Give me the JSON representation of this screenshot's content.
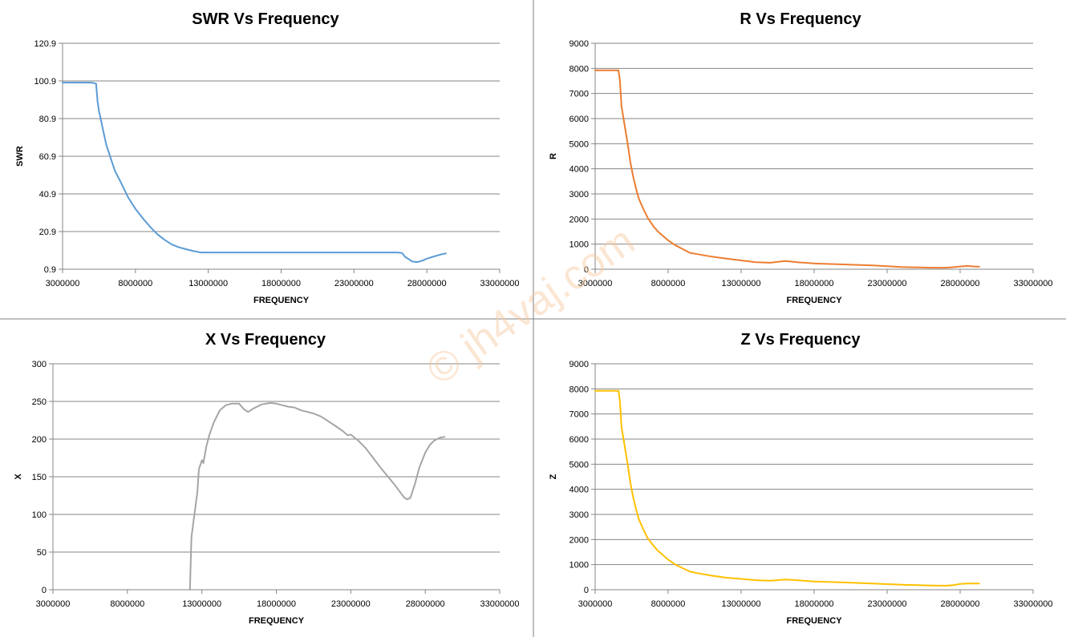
{
  "watermark": "© jh4vaj.com",
  "chart_data": [
    {
      "type": "line",
      "title": "SWR Vs Frequency",
      "xlabel": "FREQUENCY",
      "ylabel": "SWR",
      "xlim": [
        3000000,
        33000000
      ],
      "ylim": [
        0.9,
        120.9
      ],
      "x_ticks": [
        3000000,
        8000000,
        13000000,
        18000000,
        23000000,
        28000000,
        33000000
      ],
      "x_tick_labels": [
        "3000000",
        "8000000",
        "13000000",
        "18000000",
        "23000000",
        "28000000",
        "33000000"
      ],
      "y_ticks": [
        0.9,
        20.9,
        40.9,
        60.9,
        80.9,
        100.9,
        120.9
      ],
      "y_tick_labels": [
        "0.9",
        "20.9",
        "40.9",
        "60.9",
        "80.9",
        "100.9",
        "120.9"
      ],
      "grid": true,
      "color": "#5b9bd5",
      "series": [
        {
          "x": [
            3000000,
            4000000,
            5000000,
            5300000,
            5400000,
            5500000,
            5800000,
            6000000,
            6300000,
            6600000,
            7000000,
            7500000,
            8000000,
            8500000,
            9000000,
            9500000,
            10000000,
            10500000,
            11000000,
            11500000,
            12000000,
            12500000,
            13000000,
            15000000,
            18000000,
            21000000,
            24000000,
            26000000,
            26300000,
            26500000,
            26800000,
            27000000,
            27300000,
            27500000,
            27800000,
            28000000,
            28500000,
            29000000,
            29300000
          ],
          "y": [
            100,
            100,
            100,
            99.5,
            90,
            85,
            74,
            67,
            60,
            53,
            47,
            39,
            33,
            28,
            23.5,
            19.5,
            16.5,
            14,
            12.5,
            11.5,
            10.5,
            9.8,
            9.8,
            9.8,
            9.8,
            9.8,
            9.8,
            9.8,
            9.5,
            7.5,
            6,
            5,
            4.7,
            5,
            5.8,
            6.5,
            7.7,
            8.8,
            9.3
          ]
        }
      ]
    },
    {
      "type": "line",
      "title": "R Vs Frequency",
      "xlabel": "FREQUENCY",
      "ylabel": "R",
      "xlim": [
        3000000,
        33000000
      ],
      "ylim": [
        0,
        9000
      ],
      "x_ticks": [
        3000000,
        8000000,
        13000000,
        18000000,
        23000000,
        28000000,
        33000000
      ],
      "x_tick_labels": [
        "3000000",
        "8000000",
        "13000000",
        "18000000",
        "23000000",
        "28000000",
        "33000000"
      ],
      "y_ticks": [
        0,
        1000,
        2000,
        3000,
        4000,
        5000,
        6000,
        7000,
        8000,
        9000
      ],
      "y_tick_labels": [
        "0",
        "1000",
        "2000",
        "3000",
        "4000",
        "5000",
        "6000",
        "7000",
        "8000",
        "9000"
      ],
      "grid": true,
      "color": "#ed7d31",
      "series": [
        {
          "x": [
            3000000,
            4000000,
            4600000,
            4700000,
            4800000,
            5000000,
            5200000,
            5300000,
            5400000,
            5600000,
            5800000,
            6000000,
            6300000,
            6600000,
            7000000,
            7300000,
            7600000,
            8000000,
            8500000,
            9000000,
            9500000,
            10000000,
            10500000,
            11000000,
            12000000,
            13000000,
            14000000,
            15000000,
            16000000,
            16500000,
            17000000,
            18000000,
            20000000,
            22000000,
            24000000,
            26000000,
            27000000,
            27500000,
            28000000,
            28500000,
            29000000,
            29300000
          ],
          "y": [
            7920,
            7920,
            7920,
            7500,
            6500,
            5800,
            5100,
            4700,
            4300,
            3700,
            3200,
            2800,
            2400,
            2050,
            1700,
            1500,
            1350,
            1150,
            950,
            800,
            650,
            600,
            550,
            500,
            420,
            350,
            280,
            260,
            330,
            300,
            270,
            230,
            190,
            150,
            90,
            60,
            60,
            80,
            110,
            130,
            110,
            100
          ]
        }
      ]
    },
    {
      "type": "line",
      "title": "X Vs Frequency",
      "xlabel": "FREQUENCY",
      "ylabel": "X",
      "xlim": [
        3000000,
        33000000
      ],
      "ylim": [
        0,
        300
      ],
      "x_ticks": [
        3000000,
        8000000,
        13000000,
        18000000,
        23000000,
        28000000,
        33000000
      ],
      "x_tick_labels": [
        "3000000",
        "8000000",
        "13000000",
        "18000000",
        "23000000",
        "28000000",
        "33000000"
      ],
      "y_ticks": [
        0,
        50,
        100,
        150,
        200,
        250,
        300
      ],
      "y_tick_labels": [
        "0",
        "50",
        "100",
        "150",
        "200",
        "250",
        "300"
      ],
      "grid": true,
      "color": "#a5a5a5",
      "series": [
        {
          "x": [
            12200000,
            12300000,
            12500000,
            12700000,
            12800000,
            13000000,
            13100000,
            13300000,
            13500000,
            13800000,
            14200000,
            14600000,
            15000000,
            15500000,
            15800000,
            16100000,
            16400000,
            16700000,
            17000000,
            17300000,
            17600000,
            18000000,
            18400000,
            18800000,
            19200000,
            19700000,
            20500000,
            21000000,
            22000000,
            22500000,
            22800000,
            23000000,
            23500000,
            24000000,
            24500000,
            25000000,
            25500000,
            26000000,
            26300000,
            26600000,
            26800000,
            27000000,
            27300000,
            27600000,
            28000000,
            28300000,
            28600000,
            29000000,
            29300000
          ],
          "y": [
            0,
            70,
            100,
            130,
            160,
            172,
            168,
            190,
            205,
            222,
            238,
            245,
            247,
            247,
            240,
            236,
            240,
            243,
            246,
            247,
            248,
            247,
            245,
            243,
            242,
            238,
            234,
            230,
            217,
            210,
            205,
            206,
            198,
            188,
            175,
            162,
            150,
            138,
            130,
            122,
            120,
            122,
            140,
            162,
            182,
            192,
            198,
            202,
            203
          ]
        }
      ]
    },
    {
      "type": "line",
      "title": "Z Vs Frequency",
      "xlabel": "FREQUENCY",
      "ylabel": "Z",
      "xlim": [
        3000000,
        33000000
      ],
      "ylim": [
        0,
        9000
      ],
      "x_ticks": [
        3000000,
        8000000,
        13000000,
        18000000,
        23000000,
        28000000,
        33000000
      ],
      "x_tick_labels": [
        "3000000",
        "8000000",
        "13000000",
        "18000000",
        "23000000",
        "28000000",
        "33000000"
      ],
      "y_ticks": [
        0,
        1000,
        2000,
        3000,
        4000,
        5000,
        6000,
        7000,
        8000,
        9000
      ],
      "y_tick_labels": [
        "0",
        "1000",
        "2000",
        "3000",
        "4000",
        "5000",
        "6000",
        "7000",
        "8000",
        "9000"
      ],
      "grid": true,
      "color": "#ffc000",
      "series": [
        {
          "x": [
            3000000,
            4000000,
            4600000,
            4700000,
            4800000,
            5000000,
            5200000,
            5300000,
            5400000,
            5600000,
            5800000,
            6000000,
            6300000,
            6600000,
            7000000,
            7300000,
            7600000,
            8000000,
            8500000,
            9000000,
            9500000,
            10000000,
            10500000,
            11000000,
            12000000,
            13000000,
            14000000,
            15000000,
            16000000,
            16500000,
            17000000,
            18000000,
            20000000,
            22000000,
            24000000,
            26000000,
            27000000,
            27500000,
            28000000,
            28500000,
            29000000,
            29300000
          ],
          "y": [
            7920,
            7920,
            7920,
            7500,
            6500,
            5800,
            5100,
            4700,
            4300,
            3700,
            3200,
            2800,
            2400,
            2050,
            1750,
            1550,
            1400,
            1200,
            1000,
            860,
            720,
            660,
            610,
            560,
            480,
            430,
            380,
            360,
            410,
            390,
            370,
            330,
            290,
            250,
            200,
            170,
            160,
            180,
            230,
            250,
            250,
            250
          ]
        }
      ]
    }
  ]
}
